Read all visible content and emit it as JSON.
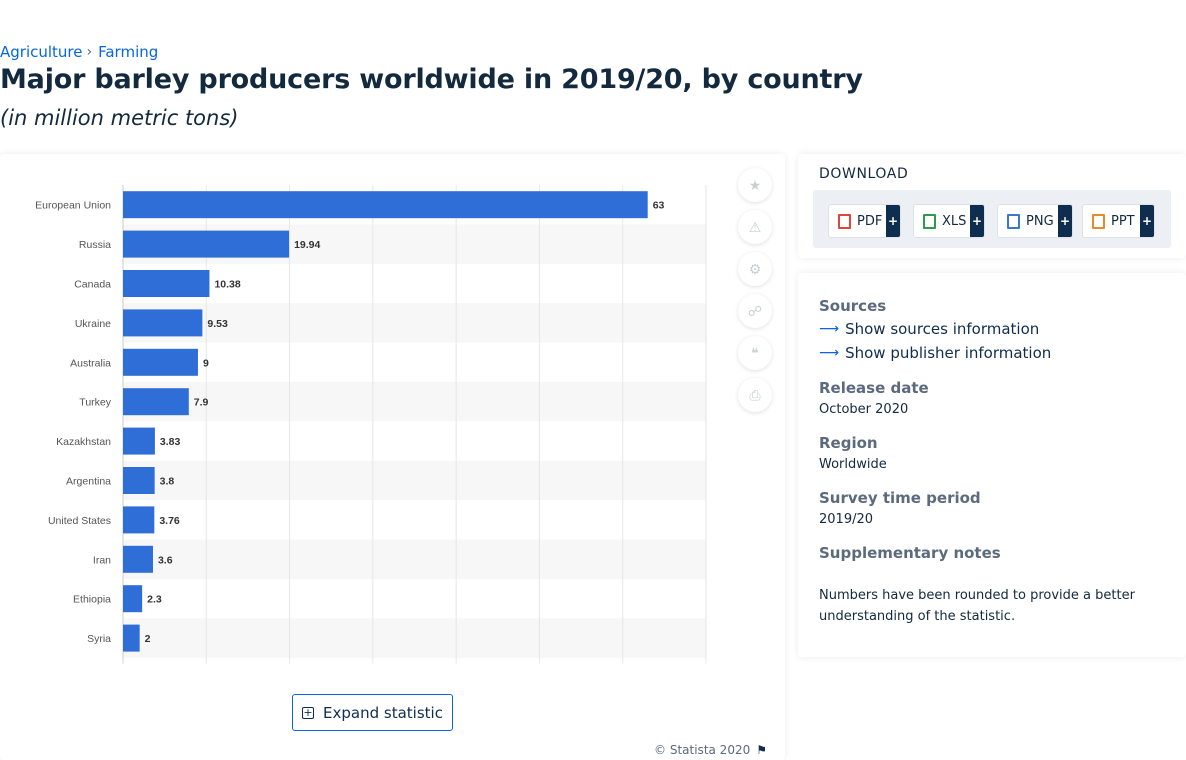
{
  "breadcrumb": {
    "items": [
      "Agriculture",
      "Farming"
    ],
    "separator": "›"
  },
  "page": {
    "title": "Major barley producers worldwide in 2019/20, by country",
    "subtitle": "(in million metric tons)"
  },
  "chart_data": {
    "type": "bar",
    "orientation": "horizontal",
    "categories": [
      "European Union",
      "Russia",
      "Canada",
      "Ukraine",
      "Australia",
      "Turkey",
      "Kazakhstan",
      "Argentina",
      "United States",
      "Iran",
      "Ethiopia",
      "Syria"
    ],
    "values": [
      63,
      19.94,
      10.38,
      9.53,
      9,
      7.9,
      3.83,
      3.8,
      3.76,
      3.6,
      2.3,
      2
    ],
    "value_labels": [
      "63",
      "19.94",
      "10.38",
      "9.53",
      "9",
      "7.9",
      "3.83",
      "3.8",
      "3.76",
      "3.6",
      "2.3",
      "2"
    ],
    "xlim": [
      0,
      70
    ],
    "grid": true,
    "bar_color": "#2e6ed6"
  },
  "chart_card": {
    "expand_label": "Expand statistic",
    "copyright": "© Statista 2020",
    "tools": [
      "star-icon",
      "bell-icon",
      "gear-icon",
      "share-icon",
      "quote-icon",
      "print-icon"
    ]
  },
  "download": {
    "heading": "DOWNLOAD",
    "buttons": [
      {
        "label": "PDF",
        "color": "#e0443a"
      },
      {
        "label": "XLS",
        "color": "#2e9a4a"
      },
      {
        "label": "PNG",
        "color": "#3a78c8"
      },
      {
        "label": "PPT",
        "color": "#e88a2a"
      }
    ]
  },
  "info": {
    "sources_heading": "Sources",
    "show_sources": "Show sources information",
    "show_publisher": "Show publisher information",
    "release_heading": "Release date",
    "release_value": "October 2020",
    "region_heading": "Region",
    "region_value": "Worldwide",
    "survey_heading": "Survey time period",
    "survey_value": "2019/20",
    "notes_heading": "Supplementary notes",
    "notes_text": "Numbers have been rounded to provide a better understanding of the statistic."
  }
}
